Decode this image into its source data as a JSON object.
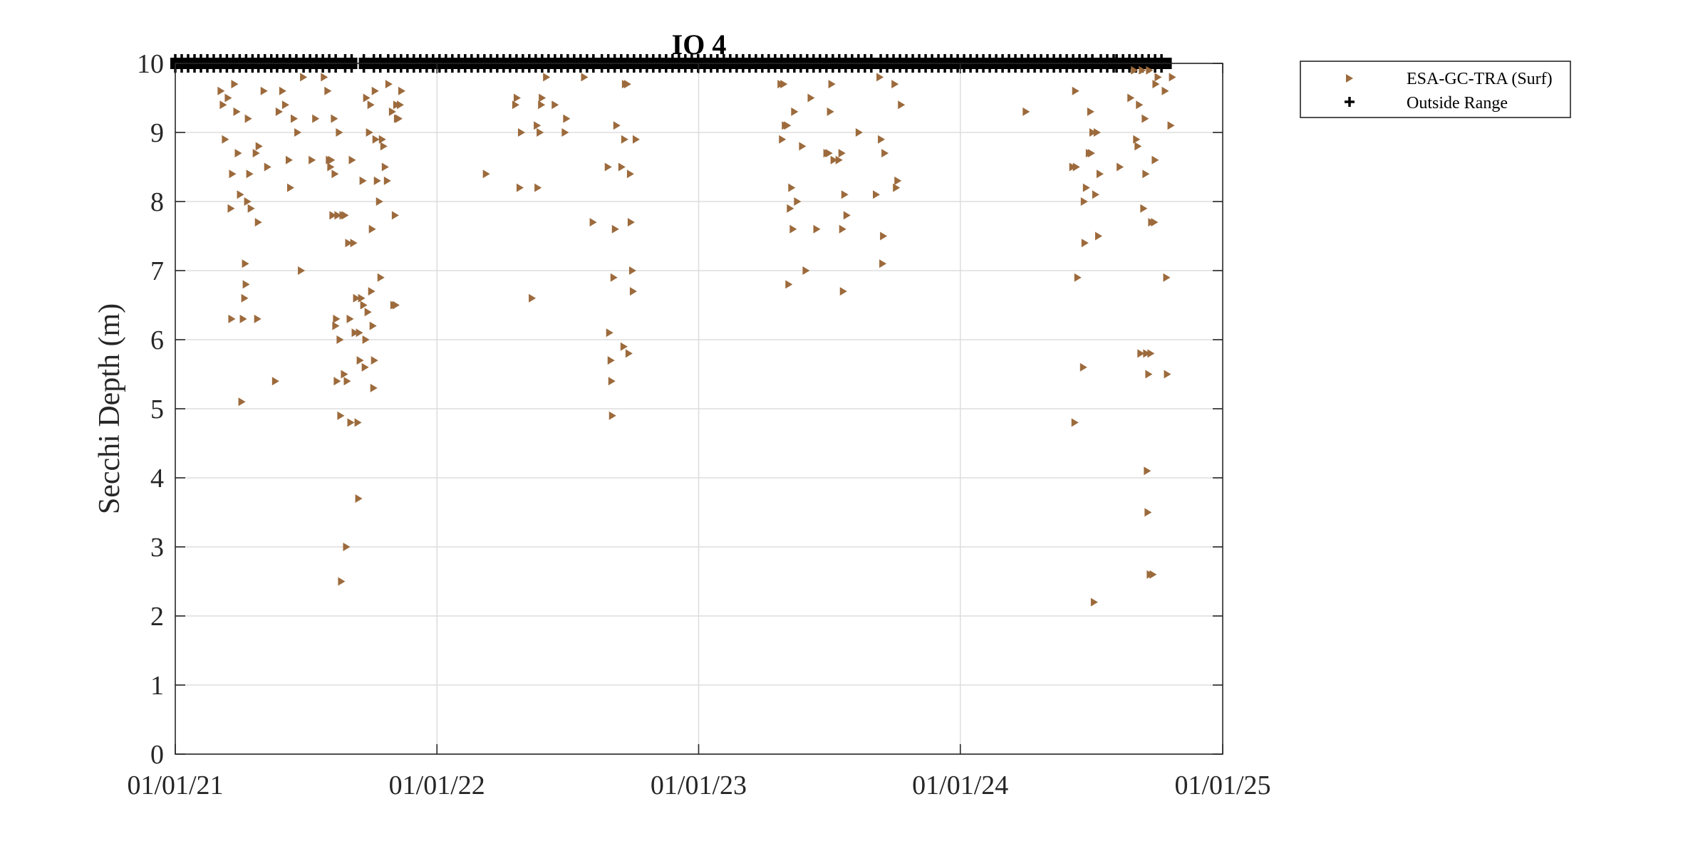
{
  "chart_data": {
    "type": "scatter",
    "title": "IO 4",
    "xlabel": "",
    "ylabel": "Secchi Depth (m)",
    "x_axis_type": "date",
    "xlim": [
      "2021-01-01",
      "2025-01-01"
    ],
    "ylim": [
      0,
      10
    ],
    "x_tick_labels": [
      "01/01/21",
      "01/01/22",
      "01/01/23",
      "01/01/24",
      "01/01/25"
    ],
    "x_ticks": [
      "2021-01-01",
      "2022-01-01",
      "2023-01-01",
      "2024-01-01",
      "2025-01-01"
    ],
    "y_ticks": [
      0,
      1,
      2,
      3,
      4,
      5,
      6,
      7,
      8,
      9,
      10
    ],
    "grid": true,
    "legend_position": "outside-top-right",
    "colors": {
      "series": "#9c6a3c",
      "outside": "#000000",
      "grid": "#dddddd",
      "axis": "#262626"
    },
    "series": [
      {
        "name": "ESA-GC-TRA (Surf)",
        "marker": "triangle-right",
        "points": [
          [
            "2021-03-05",
            9.6
          ],
          [
            "2021-03-08",
            9.4
          ],
          [
            "2021-03-11",
            8.9
          ],
          [
            "2021-03-15",
            9.5
          ],
          [
            "2021-03-19",
            7.9
          ],
          [
            "2021-03-20",
            6.3
          ],
          [
            "2021-03-21",
            8.4
          ],
          [
            "2021-03-24",
            9.7
          ],
          [
            "2021-03-27",
            9.3
          ],
          [
            "2021-03-29",
            8.7
          ],
          [
            "2021-04-01",
            8.1
          ],
          [
            "2021-04-03",
            5.1
          ],
          [
            "2021-04-05",
            6.3
          ],
          [
            "2021-04-07",
            6.6
          ],
          [
            "2021-04-08",
            7.1
          ],
          [
            "2021-04-09",
            6.8
          ],
          [
            "2021-04-11",
            8.0
          ],
          [
            "2021-04-12",
            9.2
          ],
          [
            "2021-04-14",
            8.4
          ],
          [
            "2021-04-16",
            7.9
          ],
          [
            "2021-04-23",
            8.7
          ],
          [
            "2021-04-25",
            6.3
          ],
          [
            "2021-04-26",
            7.7
          ],
          [
            "2021-04-27",
            8.8
          ],
          [
            "2021-05-04",
            9.6
          ],
          [
            "2021-05-09",
            8.5
          ],
          [
            "2021-05-20",
            5.4
          ],
          [
            "2021-05-25",
            9.3
          ],
          [
            "2021-05-30",
            9.6
          ],
          [
            "2021-06-03",
            9.4
          ],
          [
            "2021-06-08",
            8.6
          ],
          [
            "2021-06-10",
            8.2
          ],
          [
            "2021-06-15",
            9.2
          ],
          [
            "2021-06-20",
            9.0
          ],
          [
            "2021-06-25",
            7.0
          ],
          [
            "2021-06-28",
            9.8
          ],
          [
            "2021-07-10",
            8.6
          ],
          [
            "2021-07-15",
            9.2
          ],
          [
            "2021-07-27",
            9.8
          ],
          [
            "2021-08-01",
            9.6
          ],
          [
            "2021-08-03",
            8.6
          ],
          [
            "2021-08-05",
            8.5
          ],
          [
            "2021-08-06",
            8.6
          ],
          [
            "2021-08-08",
            7.8
          ],
          [
            "2021-08-10",
            9.2
          ],
          [
            "2021-08-11",
            8.4
          ],
          [
            "2021-08-12",
            6.2
          ],
          [
            "2021-08-13",
            6.3
          ],
          [
            "2021-08-14",
            5.4
          ],
          [
            "2021-08-15",
            7.8
          ],
          [
            "2021-08-17",
            9.0
          ],
          [
            "2021-08-18",
            6.0
          ],
          [
            "2021-08-19",
            4.9
          ],
          [
            "2021-08-20",
            2.5
          ],
          [
            "2021-08-22",
            7.8
          ],
          [
            "2021-08-24",
            5.5
          ],
          [
            "2021-08-25",
            7.8
          ],
          [
            "2021-08-27",
            3.0
          ],
          [
            "2021-08-28",
            5.4
          ],
          [
            "2021-08-30",
            7.4
          ],
          [
            "2021-09-01",
            6.3
          ],
          [
            "2021-09-02",
            4.8
          ],
          [
            "2021-09-04",
            8.6
          ],
          [
            "2021-09-06",
            7.4
          ],
          [
            "2021-09-08",
            6.1
          ],
          [
            "2021-09-10",
            6.6
          ],
          [
            "2021-09-12",
            4.8
          ],
          [
            "2021-09-13",
            3.7
          ],
          [
            "2021-09-14",
            6.1
          ],
          [
            "2021-09-15",
            5.7
          ],
          [
            "2021-09-17",
            6.6
          ],
          [
            "2021-09-19",
            8.3
          ],
          [
            "2021-09-20",
            6.5
          ],
          [
            "2021-09-22",
            5.6
          ],
          [
            "2021-09-23",
            6.0
          ],
          [
            "2021-09-24",
            9.5
          ],
          [
            "2021-09-26",
            6.4
          ],
          [
            "2021-09-28",
            9.0
          ],
          [
            "2021-09-30",
            9.4
          ],
          [
            "2021-10-01",
            6.7
          ],
          [
            "2021-10-02",
            7.6
          ],
          [
            "2021-10-03",
            6.2
          ],
          [
            "2021-10-04",
            5.3
          ],
          [
            "2021-10-05",
            5.7
          ],
          [
            "2021-10-06",
            9.6
          ],
          [
            "2021-10-07",
            8.9
          ],
          [
            "2021-10-09",
            8.3
          ],
          [
            "2021-10-12",
            8.0
          ],
          [
            "2021-10-14",
            6.9
          ],
          [
            "2021-10-16",
            8.9
          ],
          [
            "2021-10-18",
            8.8
          ],
          [
            "2021-10-20",
            8.5
          ],
          [
            "2021-10-23",
            8.3
          ],
          [
            "2021-10-25",
            9.7
          ],
          [
            "2021-10-30",
            9.3
          ],
          [
            "2021-11-01",
            6.5
          ],
          [
            "2021-11-03",
            7.8
          ],
          [
            "2021-11-04",
            6.5
          ],
          [
            "2021-11-05",
            9.4
          ],
          [
            "2021-11-06",
            9.2
          ],
          [
            "2021-11-08",
            9.2
          ],
          [
            "2021-11-10",
            9.4
          ],
          [
            "2021-11-12",
            9.6
          ],
          [
            "2022-03-10",
            8.4
          ],
          [
            "2022-04-20",
            9.4
          ],
          [
            "2022-04-22",
            9.5
          ],
          [
            "2022-04-26",
            8.2
          ],
          [
            "2022-04-28",
            9.0
          ],
          [
            "2022-05-13",
            6.6
          ],
          [
            "2022-05-20",
            9.1
          ],
          [
            "2022-05-21",
            8.2
          ],
          [
            "2022-05-24",
            9.0
          ],
          [
            "2022-05-26",
            9.4
          ],
          [
            "2022-05-27",
            9.5
          ],
          [
            "2022-06-02",
            9.8
          ],
          [
            "2022-06-14",
            9.4
          ],
          [
            "2022-06-28",
            9.0
          ],
          [
            "2022-06-30",
            9.2
          ],
          [
            "2022-07-25",
            9.8
          ],
          [
            "2022-08-06",
            7.7
          ],
          [
            "2022-08-27",
            8.5
          ],
          [
            "2022-08-29",
            6.1
          ],
          [
            "2022-08-31",
            5.7
          ],
          [
            "2022-09-01",
            5.4
          ],
          [
            "2022-09-02",
            4.9
          ],
          [
            "2022-09-04",
            6.9
          ],
          [
            "2022-09-06",
            7.6
          ],
          [
            "2022-09-08",
            9.1
          ],
          [
            "2022-09-15",
            8.5
          ],
          [
            "2022-09-18",
            5.9
          ],
          [
            "2022-09-19",
            8.9
          ],
          [
            "2022-09-20",
            9.7
          ],
          [
            "2022-09-23",
            9.7
          ],
          [
            "2022-09-25",
            5.8
          ],
          [
            "2022-09-27",
            8.4
          ],
          [
            "2022-09-28",
            7.7
          ],
          [
            "2022-09-30",
            7.0
          ],
          [
            "2022-10-01",
            6.7
          ],
          [
            "2022-10-05",
            8.9
          ],
          [
            "2023-04-25",
            9.7
          ],
          [
            "2023-04-27",
            8.9
          ],
          [
            "2023-04-29",
            9.7
          ],
          [
            "2023-05-01",
            9.1
          ],
          [
            "2023-05-04",
            9.1
          ],
          [
            "2023-05-06",
            6.8
          ],
          [
            "2023-05-08",
            7.9
          ],
          [
            "2023-05-10",
            8.2
          ],
          [
            "2023-05-12",
            7.6
          ],
          [
            "2023-05-14",
            9.3
          ],
          [
            "2023-05-18",
            8.0
          ],
          [
            "2023-05-25",
            8.8
          ],
          [
            "2023-05-30",
            7.0
          ],
          [
            "2023-06-06",
            9.5
          ],
          [
            "2023-06-14",
            7.6
          ],
          [
            "2023-06-28",
            8.7
          ],
          [
            "2023-07-01",
            8.7
          ],
          [
            "2023-07-03",
            9.3
          ],
          [
            "2023-07-05",
            9.7
          ],
          [
            "2023-07-08",
            8.6
          ],
          [
            "2023-07-15",
            8.6
          ],
          [
            "2023-07-19",
            8.7
          ],
          [
            "2023-07-20",
            7.6
          ],
          [
            "2023-07-21",
            6.7
          ],
          [
            "2023-07-23",
            8.1
          ],
          [
            "2023-07-26",
            7.8
          ],
          [
            "2023-08-12",
            9.0
          ],
          [
            "2023-09-05",
            8.1
          ],
          [
            "2023-09-10",
            9.8
          ],
          [
            "2023-09-12",
            8.9
          ],
          [
            "2023-09-14",
            7.1
          ],
          [
            "2023-09-15",
            7.5
          ],
          [
            "2023-09-17",
            8.7
          ],
          [
            "2023-10-01",
            9.7
          ],
          [
            "2023-10-03",
            8.2
          ],
          [
            "2023-10-05",
            8.3
          ],
          [
            "2023-10-10",
            9.4
          ],
          [
            "2024-04-01",
            9.3
          ],
          [
            "2024-06-05",
            8.5
          ],
          [
            "2024-06-08",
            4.8
          ],
          [
            "2024-06-09",
            9.6
          ],
          [
            "2024-06-10",
            8.5
          ],
          [
            "2024-06-12",
            6.9
          ],
          [
            "2024-06-20",
            5.6
          ],
          [
            "2024-06-21",
            8.0
          ],
          [
            "2024-06-22",
            7.4
          ],
          [
            "2024-06-24",
            8.2
          ],
          [
            "2024-06-28",
            8.7
          ],
          [
            "2024-06-30",
            9.3
          ],
          [
            "2024-07-01",
            8.7
          ],
          [
            "2024-07-03",
            9.0
          ],
          [
            "2024-07-05",
            2.2
          ],
          [
            "2024-07-07",
            8.1
          ],
          [
            "2024-07-09",
            9.0
          ],
          [
            "2024-07-11",
            7.5
          ],
          [
            "2024-07-13",
            8.4
          ],
          [
            "2024-08-10",
            8.5
          ],
          [
            "2024-08-25",
            9.5
          ],
          [
            "2024-08-30",
            9.9
          ],
          [
            "2024-09-02",
            8.9
          ],
          [
            "2024-09-04",
            8.8
          ],
          [
            "2024-09-06",
            9.4
          ],
          [
            "2024-09-08",
            5.8
          ],
          [
            "2024-09-10",
            9.9
          ],
          [
            "2024-09-12",
            7.9
          ],
          [
            "2024-09-14",
            9.2
          ],
          [
            "2024-09-15",
            8.4
          ],
          [
            "2024-09-16",
            5.8
          ],
          [
            "2024-09-17",
            4.1
          ],
          [
            "2024-09-18",
            3.5
          ],
          [
            "2024-09-19",
            5.5
          ],
          [
            "2024-09-20",
            9.9
          ],
          [
            "2024-09-21",
            2.6
          ],
          [
            "2024-09-22",
            5.8
          ],
          [
            "2024-09-23",
            7.7
          ],
          [
            "2024-09-25",
            2.6
          ],
          [
            "2024-09-27",
            7.7
          ],
          [
            "2024-09-28",
            8.6
          ],
          [
            "2024-09-29",
            9.7
          ],
          [
            "2024-10-02",
            9.8
          ],
          [
            "2024-10-12",
            9.6
          ],
          [
            "2024-10-14",
            6.9
          ],
          [
            "2024-10-15",
            5.5
          ],
          [
            "2024-10-20",
            9.1
          ],
          [
            "2024-10-22",
            9.8
          ]
        ]
      },
      {
        "name": "Outside Range",
        "marker": "plus",
        "y_value": 10,
        "x_ranges": [
          [
            "2021-01-01",
            "2021-03-01"
          ],
          [
            "2021-03-05",
            "2021-04-24"
          ],
          [
            "2021-04-27",
            "2021-05-20"
          ],
          [
            "2021-05-23",
            "2021-06-26"
          ],
          [
            "2021-06-29",
            "2021-08-15"
          ],
          [
            "2021-08-26",
            "2021-09-05"
          ],
          [
            "2021-09-21",
            "2021-09-29"
          ],
          [
            "2021-10-05",
            "2021-10-20"
          ],
          [
            "2021-10-25",
            "2022-08-14"
          ],
          [
            "2022-08-19",
            "2022-09-10"
          ],
          [
            "2022-09-15",
            "2023-09-07"
          ],
          [
            "2023-09-12",
            "2024-07-08"
          ],
          [
            "2024-07-15",
            "2024-08-02"
          ],
          [
            "2024-08-06",
            "2024-10-15"
          ]
        ]
      }
    ]
  }
}
